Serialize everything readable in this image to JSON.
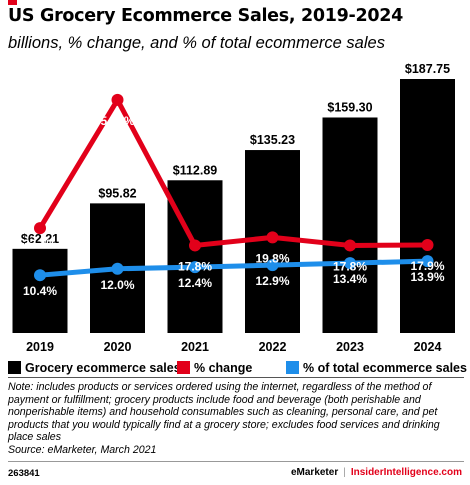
{
  "header": {
    "title": "US Grocery Ecommerce Sales, 2019-2024",
    "subtitle": "billions, % change, and % of total ecommerce sales"
  },
  "colors": {
    "bar": "#000000",
    "change": "#e2001a",
    "share": "#1e8eea",
    "accent": "#e2001a"
  },
  "chart_data": {
    "type": "bar",
    "categories": [
      "2019",
      "2020",
      "2021",
      "2022",
      "2023",
      "2024"
    ],
    "series": [
      {
        "name": "Grocery ecommerce sales",
        "type": "bar",
        "values": [
          62.21,
          95.82,
          112.89,
          135.23,
          159.3,
          187.75
        ],
        "labels": [
          "$62.21",
          "$95.82",
          "$112.89",
          "$135.23",
          "$159.30",
          "$187.75"
        ],
        "color": "#000000"
      },
      {
        "name": "% change",
        "type": "line",
        "values": [
          22.1,
          54.0,
          17.8,
          19.8,
          17.8,
          17.9
        ],
        "labels": [
          "22.1%",
          "54.0%",
          "17.8%",
          "19.8%",
          "17.8%",
          "17.9%"
        ],
        "color": "#e2001a"
      },
      {
        "name": "% of total ecommerce sales",
        "type": "line",
        "values": [
          10.4,
          12.0,
          12.4,
          12.9,
          13.4,
          13.9
        ],
        "labels": [
          "10.4%",
          "12.0%",
          "12.4%",
          "12.9%",
          "13.4%",
          "13.9%"
        ],
        "color": "#1e8eea"
      }
    ],
    "legend_position": "bottom",
    "grid": false
  },
  "note": "Note: includes products or services ordered using the internet, regardless of the method of payment or fulfillment; grocery products include food and beverage (both perishable and nonperishable items) and household consumables such as cleaning, personal care, and pet products that you would typically find at a grocery store; excludes food services and drinking place sales",
  "source": "Source: eMarketer, March 2021",
  "footer": {
    "id": "263841",
    "brand": "eMarketer",
    "brand2": "InsiderIntelligence.com"
  }
}
